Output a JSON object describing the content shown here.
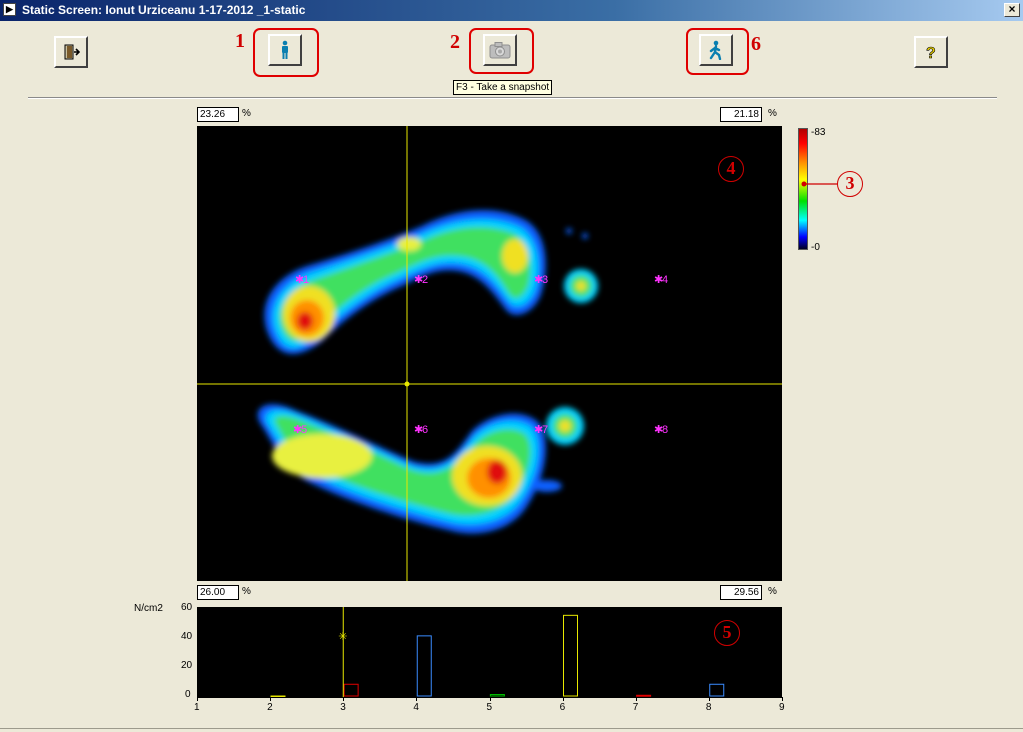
{
  "window": {
    "title": "Static Screen: Ionut Urziceanu 1-17-2012 _1-static",
    "close_label": "×"
  },
  "toolbar": {
    "exit_icon": "exit-door-icon",
    "static_icon": "standing-person-icon",
    "snapshot_icon": "camera-icon",
    "gait_icon": "walking-person-icon",
    "help_icon": "question-mark-icon",
    "snapshot_tooltip": "F3 - Take a snapshot"
  },
  "annotations": {
    "n1": "1",
    "n2": "2",
    "n3": "3",
    "n4": "4",
    "n5": "5",
    "n6": "6"
  },
  "percentages": {
    "top_left": "23.26",
    "top_right": "21.18",
    "bottom_left": "26.00",
    "bottom_right": "29.56",
    "unit": "%"
  },
  "colorbar": {
    "max_label": "-83",
    "min_label": "-0"
  },
  "sensor_markers": [
    "1",
    "2",
    "3",
    "4",
    "5",
    "6",
    "7",
    "8"
  ],
  "chart_data": {
    "type": "bar",
    "ylabel": "N/cm2",
    "ylim": [
      0,
      60
    ],
    "yticks": [
      "60",
      "40",
      "20",
      "0"
    ],
    "xticks": [
      "1",
      "2",
      "3",
      "4",
      "5",
      "6",
      "7",
      "8",
      "9"
    ],
    "series": [
      {
        "values": [
          0,
          8,
          41,
          1,
          55,
          0.5,
          8,
          1
        ],
        "colors": [
          "#e8e800",
          "#e00000",
          "#3a8cff",
          "#00c000",
          "#e8e800",
          "#e00000",
          "#3a8cff",
          "#00c000"
        ]
      }
    ],
    "cursor_x": 3,
    "cursor_y": 41
  },
  "colors": {
    "annotation_red": "#d00000",
    "crosshair": "#e8e800",
    "marker": "#ff00ff"
  }
}
